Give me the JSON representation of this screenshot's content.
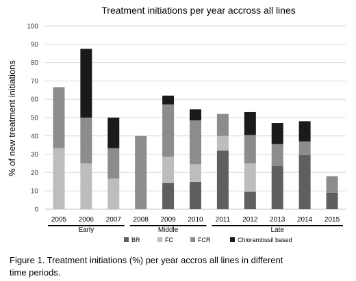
{
  "chart_data": {
    "type": "bar",
    "stacked": true,
    "title": "Treatment initiations per year accross all lines",
    "ylabel": "% of new treatment initiations",
    "xlabel": "",
    "ylim": [
      0,
      100
    ],
    "yticks": [
      0,
      10,
      20,
      30,
      40,
      50,
      60,
      70,
      80,
      90,
      100
    ],
    "grid": true,
    "legend_position": "bottom",
    "categories": [
      "2005",
      "2006",
      "2007",
      "2008",
      "2009",
      "2010",
      "2011",
      "2012",
      "2013",
      "2014",
      "2015"
    ],
    "groups": [
      {
        "label": "Early",
        "categories": [
          "2005",
          "2006",
          "2007"
        ]
      },
      {
        "label": "Middle",
        "categories": [
          "2008",
          "2009",
          "2010"
        ]
      },
      {
        "label": "Late",
        "categories": [
          "2011",
          "2012",
          "2013",
          "2014",
          "2015"
        ]
      }
    ],
    "series": [
      {
        "name": "BR",
        "color": "#5f5f5f",
        "values": [
          0,
          0,
          0,
          0,
          14.3,
          15,
          32,
          9.5,
          23.5,
          29.5,
          9
        ]
      },
      {
        "name": "FC",
        "color": "#bdbdbd",
        "values": [
          33.3,
          25,
          16.7,
          0,
          14.3,
          9.5,
          8,
          15.5,
          0,
          0,
          0
        ]
      },
      {
        "name": "FCR",
        "color": "#8c8c8c",
        "values": [
          33.3,
          25,
          16.6,
          40,
          28.6,
          24,
          12,
          15.5,
          12,
          7.5,
          9
        ]
      },
      {
        "name": "Chlorambusil based",
        "color": "#1a1a1a",
        "values": [
          0,
          37.5,
          16.7,
          0,
          4.8,
          6,
          0,
          12.5,
          11.5,
          11,
          0
        ]
      }
    ]
  },
  "caption": {
    "line1": "Figure 1. Treatment initiations (%) per year accros all lines in different",
    "line2": "time periods."
  }
}
